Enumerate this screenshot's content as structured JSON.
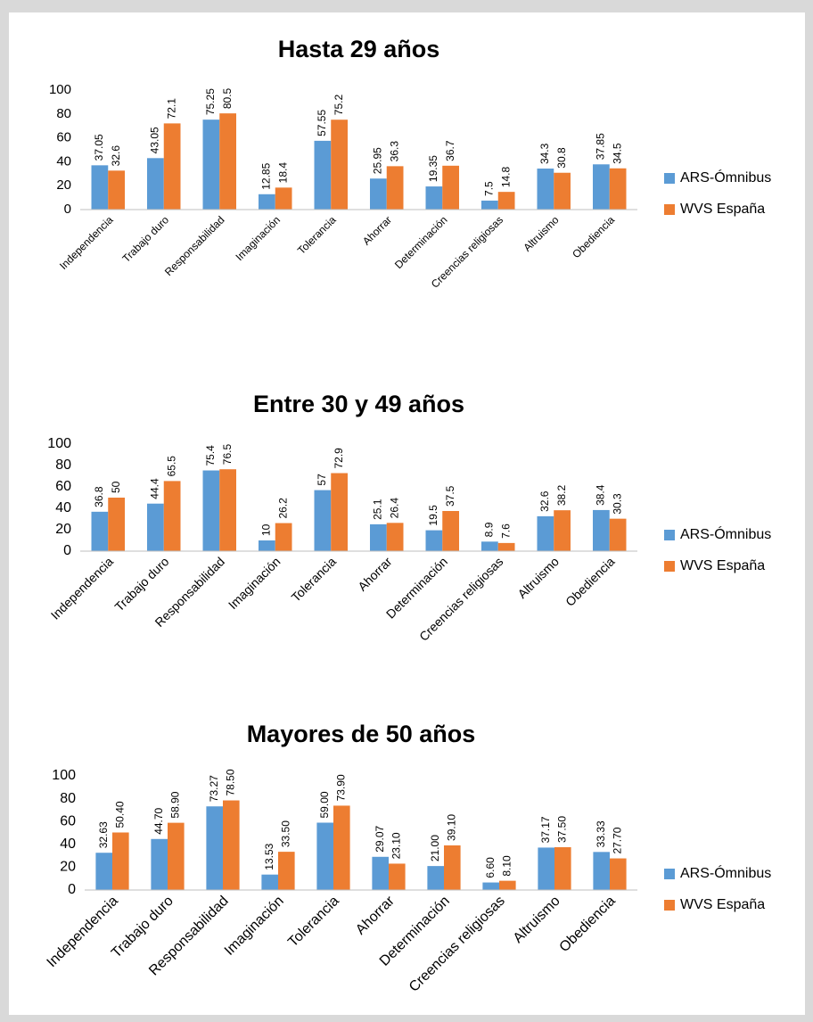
{
  "chart_data": [
    {
      "type": "bar",
      "title": "Hasta 29 años",
      "categories": [
        "Independencia",
        "Trabajo duro",
        "Responsabilidad",
        "Imaginación",
        "Tolerancia",
        "Ahorrar",
        "Determinación",
        "Creencias religiosas",
        "Altruismo",
        "Obediencia"
      ],
      "series": [
        {
          "name": "ARS-Ómnibus",
          "color": "#5b9bd5",
          "values": [
            37.05,
            43.05,
            75.25,
            12.85,
            57.55,
            25.95,
            19.35,
            7.5,
            34.3,
            37.85
          ]
        },
        {
          "name": "WVS España",
          "color": "#ed7d31",
          "values": [
            32.6,
            72.1,
            80.5,
            18.4,
            75.2,
            36.3,
            36.7,
            14.8,
            30.8,
            34.5
          ]
        }
      ],
      "ylim": [
        0,
        100
      ],
      "yticks": [
        0,
        20,
        40,
        60,
        80,
        100
      ],
      "grid": false,
      "legend": "right"
    },
    {
      "type": "bar",
      "title": "Entre  30 y 49 años",
      "categories": [
        "Independencia",
        "Trabajo duro",
        "Responsabilidad",
        "Imaginación",
        "Tolerancia",
        "Ahorrar",
        "Determinación",
        "Creencias religiosas",
        "Altruismo",
        "Obediencia"
      ],
      "series": [
        {
          "name": "ARS-Ómnibus",
          "color": "#5b9bd5",
          "values": [
            36.8,
            44.4,
            75.4,
            10,
            57,
            25.1,
            19.5,
            8.9,
            32.6,
            38.4
          ]
        },
        {
          "name": "WVS España",
          "color": "#ed7d31",
          "values": [
            50,
            65.5,
            76.5,
            26.2,
            72.9,
            26.4,
            37.5,
            7.6,
            38.2,
            30.3
          ]
        }
      ],
      "ylim": [
        0,
        100
      ],
      "yticks": [
        0,
        20,
        40,
        60,
        80,
        100
      ],
      "grid": false,
      "legend": "right"
    },
    {
      "type": "bar",
      "title": "Mayores de 50 años",
      "categories": [
        "Independencia",
        "Trabajo duro",
        "Responsabilidad",
        "Imaginación",
        "Tolerancia",
        "Ahorrar",
        "Determinación",
        "Creencias religiosas",
        "Altruismo",
        "Obediencia"
      ],
      "series": [
        {
          "name": "ARS-Ómnibus",
          "color": "#5b9bd5",
          "values": [
            32.63,
            44.7,
            73.27,
            13.53,
            59,
            29.07,
            21,
            6.6,
            37.17,
            33.33
          ],
          "value_labels": [
            "32.63",
            "44.70",
            "73.27",
            "13.53",
            "59.00",
            "29.07",
            "21.00",
            "6.60",
            "37.17",
            "33.33"
          ]
        },
        {
          "name": "WVS España",
          "color": "#ed7d31",
          "values": [
            50.4,
            58.9,
            78.5,
            33.5,
            73.9,
            23.1,
            39.1,
            8.1,
            37.5,
            27.7
          ],
          "value_labels": [
            "50.40",
            "58.90",
            "78.50",
            "33.50",
            "73.90",
            "23.10",
            "39.10",
            "8.10",
            "37.50",
            "27.70"
          ]
        }
      ],
      "ylim": [
        0,
        100
      ],
      "yticks": [
        0,
        20,
        40,
        60,
        80,
        100
      ],
      "grid": false,
      "legend": "right"
    }
  ]
}
